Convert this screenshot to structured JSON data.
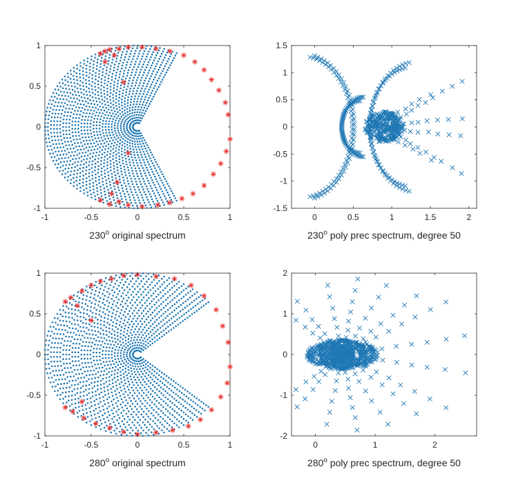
{
  "colors": {
    "series": "#1f77b4",
    "eigen_highlight": "#e8312c",
    "axis": "#262626"
  },
  "chart_data": [
    {
      "type": "scatter",
      "title": "",
      "xlabel": {
        "pre": "230",
        "sup": "o",
        "post": " original spectrum"
      },
      "ylabel": "",
      "xlim": [
        -1,
        1
      ],
      "ylim": [
        -1,
        1
      ],
      "xticks": [
        -1,
        -0.5,
        0,
        0.5,
        1
      ],
      "xtick_labels": [
        "-1",
        "-0.5",
        "0",
        "0.5",
        "1"
      ],
      "yticks": [
        -1,
        -0.5,
        0,
        0.5,
        1
      ],
      "ytick_labels": [
        "-1",
        "-0.5",
        "0",
        "0.5",
        "1"
      ],
      "grid": false,
      "series": [
        {
          "name": "eigenvalues",
          "marker": "dot",
          "color": "#1f77b4",
          "generator": "pacman_arcs",
          "opening_angle_deg": 230,
          "rings": 30,
          "r_inner": 0.05,
          "r_outer": 1.0,
          "center": [
            0,
            0
          ]
        },
        {
          "name": "outliers",
          "marker": "asterisk",
          "color": "#e8312c",
          "x": [
            -0.4,
            -0.35,
            -0.3,
            -0.25,
            -0.2,
            -0.1,
            0.05,
            0.2,
            0.35,
            0.5,
            0.62,
            0.72,
            0.8,
            0.88,
            0.95,
            0.98,
            1.0,
            0.96,
            0.9,
            0.82,
            0.72,
            0.6,
            0.48,
            0.35,
            0.22,
            0.05,
            -0.1,
            -0.2,
            -0.3,
            -0.4,
            -0.15,
            -0.1,
            -0.35,
            -0.28,
            -0.22
          ],
          "y": [
            0.9,
            0.93,
            0.95,
            0.88,
            0.96,
            0.98,
            0.98,
            0.96,
            0.93,
            0.88,
            0.8,
            0.7,
            0.58,
            0.45,
            0.3,
            0.15,
            -0.15,
            -0.3,
            -0.45,
            -0.58,
            -0.72,
            -0.82,
            -0.88,
            -0.93,
            -0.96,
            -0.98,
            -0.96,
            -0.92,
            -0.95,
            -0.9,
            0.55,
            -0.32,
            0.8,
            -0.82,
            -0.68
          ]
        }
      ]
    },
    {
      "type": "scatter",
      "title": "",
      "xlabel": {
        "pre": "230",
        "sup": "o",
        "post": " poly prec spectrum, degree 50"
      },
      "ylabel": "",
      "xlim": [
        -0.3,
        2.1
      ],
      "ylim": [
        -1.5,
        1.5
      ],
      "xticks": [
        0,
        0.5,
        1,
        1.5,
        2
      ],
      "xtick_labels": [
        "0",
        "0.5",
        "1",
        "1.5",
        "2"
      ],
      "yticks": [
        -1.5,
        -1,
        -0.5,
        0,
        0.5,
        1,
        1.5
      ],
      "ytick_labels": [
        "-1.5",
        "-1",
        "-0.5",
        "0",
        "0.5",
        "1",
        "1.5"
      ],
      "grid": false,
      "series": [
        {
          "name": "preconditioned eigenvalues",
          "marker": "x",
          "color": "#1f77b4",
          "generator": "fan",
          "seed": 7,
          "arcs": [
            {
              "cx": 0.3,
              "r": 0.55,
              "side": "left",
              "count": 46
            },
            {
              "cx": 0.3,
              "r": 0.48,
              "side": "left",
              "count": 36
            },
            {
              "cx": 0.6,
              "r": 1.1,
              "side": "left",
              "span": 0.9,
              "count": 44
            },
            {
              "cx": 0.6,
              "r": 1.2,
              "side": "left",
              "span": 0.9,
              "count": 40
            },
            {
              "cx": 0.62,
              "r": 1.3,
              "side": "right",
              "span": 0.9,
              "count": 44
            },
            {
              "cx": 0.65,
              "r": 1.35,
              "side": "right",
              "span": 0.85,
              "count": 40
            }
          ],
          "cluster": {
            "cx": 0.9,
            "cy": 0,
            "rx": 0.25,
            "ry": 0.28,
            "count": 260
          },
          "rays": [
            {
              "x0": 1.0,
              "y0": 0.1,
              "x1": 1.9,
              "y1": 0.85,
              "count": 11
            },
            {
              "x0": 1.0,
              "y0": -0.1,
              "x1": 1.9,
              "y1": -0.85,
              "count": 11
            },
            {
              "x0": 1.0,
              "y0": 0.05,
              "x1": 1.9,
              "y1": 0.15,
              "count": 9
            },
            {
              "x0": 1.0,
              "y0": -0.05,
              "x1": 1.9,
              "y1": -0.15,
              "count": 9
            },
            {
              "x0": 1.0,
              "y0": 0.2,
              "x1": 1.5,
              "y1": 0.6,
              "count": 6
            },
            {
              "x0": 1.0,
              "y0": -0.2,
              "x1": 1.5,
              "y1": -0.6,
              "count": 6
            }
          ]
        }
      ]
    },
    {
      "type": "scatter",
      "title": "",
      "xlabel": {
        "pre": "280",
        "sup": "o",
        "post": " original spectrum"
      },
      "ylabel": "",
      "xlim": [
        -1,
        1
      ],
      "ylim": [
        -1,
        1
      ],
      "xticks": [
        -1,
        -0.5,
        0,
        0.5,
        1
      ],
      "xtick_labels": [
        "-1",
        "-0.5",
        "0",
        "0.5",
        "1"
      ],
      "yticks": [
        -1,
        -0.5,
        0,
        0.5,
        1
      ],
      "ytick_labels": [
        "-1",
        "-0.5",
        "0",
        "0.5",
        "1"
      ],
      "grid": false,
      "series": [
        {
          "name": "eigenvalues",
          "marker": "dot",
          "color": "#1f77b4",
          "generator": "pacman_arcs",
          "opening_angle_deg": 280,
          "rings": 30,
          "r_inner": 0.05,
          "r_outer": 1.0,
          "center": [
            0,
            0
          ]
        },
        {
          "name": "outliers",
          "marker": "asterisk",
          "color": "#e8312c",
          "x": [
            -0.78,
            -0.72,
            -0.6,
            -0.5,
            -0.4,
            -0.28,
            -0.15,
            0.0,
            0.2,
            0.4,
            0.58,
            0.72,
            0.85,
            0.92,
            0.98,
            1.0,
            0.97,
            0.9,
            0.8,
            0.68,
            0.55,
            0.38,
            0.2,
            0.0,
            -0.15,
            -0.3,
            -0.45,
            -0.58,
            -0.7,
            -0.78,
            -0.65,
            -0.6,
            -0.5
          ],
          "y": [
            0.65,
            0.7,
            0.78,
            0.85,
            0.9,
            0.93,
            0.97,
            0.98,
            0.96,
            0.93,
            0.85,
            0.72,
            0.55,
            0.35,
            0.15,
            -0.15,
            -0.35,
            -0.52,
            -0.68,
            -0.8,
            -0.88,
            -0.93,
            -0.96,
            -0.98,
            -0.95,
            -0.9,
            -0.85,
            -0.78,
            -0.7,
            -0.65,
            0.6,
            -0.58,
            0.42
          ]
        }
      ]
    },
    {
      "type": "scatter",
      "title": "",
      "xlabel": {
        "pre": "280",
        "sup": "o",
        "post": " poly prec spectrum, degree 50"
      },
      "ylabel": "",
      "xlim": [
        -0.4,
        2.7
      ],
      "ylim": [
        -2,
        2
      ],
      "xticks": [
        0,
        1,
        2
      ],
      "xtick_labels": [
        "0",
        "1",
        "2"
      ],
      "yticks": [
        -2,
        -1,
        0,
        1,
        2
      ],
      "ytick_labels": [
        "-2",
        "-1",
        "0",
        "1",
        "2"
      ],
      "grid": false,
      "series": [
        {
          "name": "preconditioned eigenvalues",
          "marker": "x",
          "color": "#1f77b4",
          "generator": "fan",
          "seed": 11,
          "arcs": [
            {
              "cx": 0.45,
              "r": 0.2,
              "side": "full",
              "count": 60
            },
            {
              "cx": 0.45,
              "r": 0.35,
              "side": "full",
              "count": 70
            }
          ],
          "cluster": {
            "cx": 0.45,
            "cy": 0,
            "rx": 0.6,
            "ry": 0.35,
            "count": 420
          },
          "rays": [
            {
              "x0": 0.45,
              "y0": 0,
              "x1": 0.7,
              "y1": 1.85,
              "count": 10
            },
            {
              "x0": 0.45,
              "y0": 0,
              "x1": 0.7,
              "y1": -1.85,
              "count": 10
            },
            {
              "x0": 0.45,
              "y0": 0,
              "x1": 0.2,
              "y1": 1.7,
              "count": 9
            },
            {
              "x0": 0.45,
              "y0": 0,
              "x1": 0.2,
              "y1": -1.7,
              "count": 9
            },
            {
              "x0": 0.45,
              "y0": 0,
              "x1": -0.3,
              "y1": 1.3,
              "count": 9
            },
            {
              "x0": 0.45,
              "y0": 0,
              "x1": -0.3,
              "y1": -1.3,
              "count": 9
            },
            {
              "x0": 0.45,
              "y0": 0,
              "x1": -0.32,
              "y1": 0.85,
              "count": 8
            },
            {
              "x0": 0.45,
              "y0": 0,
              "x1": -0.32,
              "y1": -0.85,
              "count": 8
            },
            {
              "x0": 0.45,
              "y0": 0,
              "x1": 1.2,
              "y1": 1.7,
              "count": 9
            },
            {
              "x0": 0.45,
              "y0": 0,
              "x1": 1.2,
              "y1": -1.7,
              "count": 9
            },
            {
              "x0": 0.45,
              "y0": 0,
              "x1": 1.7,
              "y1": 1.45,
              "count": 9
            },
            {
              "x0": 0.45,
              "y0": 0,
              "x1": 1.7,
              "y1": -1.45,
              "count": 9
            },
            {
              "x0": 0.45,
              "y0": 0,
              "x1": 2.2,
              "y1": 1.3,
              "count": 10
            },
            {
              "x0": 0.45,
              "y0": 0,
              "x1": 2.2,
              "y1": -1.3,
              "count": 10
            },
            {
              "x0": 0.45,
              "y0": 0,
              "x1": 2.5,
              "y1": 0.45,
              "count": 10
            },
            {
              "x0": 0.45,
              "y0": 0,
              "x1": 2.5,
              "y1": -0.45,
              "count": 10
            }
          ]
        }
      ]
    }
  ]
}
